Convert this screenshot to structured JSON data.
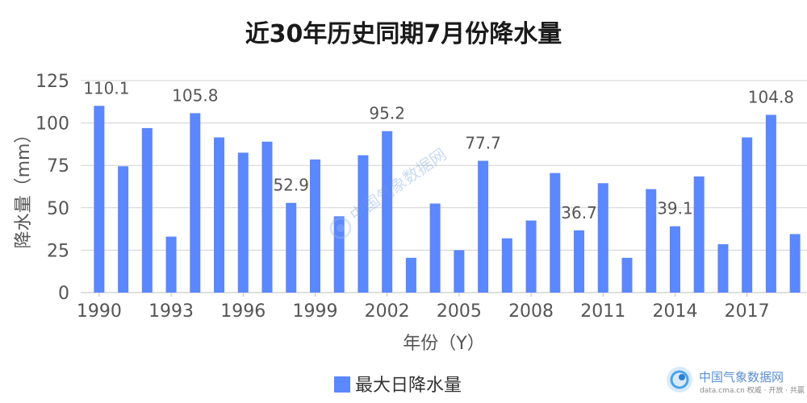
{
  "chart_data": {
    "type": "bar",
    "title": "近30年历史同期7月份降水量",
    "xlabel": "年份（Y）",
    "ylabel": "降水量（mm）",
    "ylim": [
      0,
      125
    ],
    "yticks": [
      "0",
      "25",
      "50",
      "75",
      "100",
      "125"
    ],
    "grid": true,
    "legend_position": "bottom",
    "bar_color": "#5b87ff",
    "categories": [
      1990,
      1991,
      1992,
      1993,
      1994,
      1995,
      1996,
      1997,
      1998,
      1999,
      2000,
      2001,
      2002,
      2003,
      2004,
      2005,
      2006,
      2007,
      2008,
      2009,
      2010,
      2011,
      2012,
      2013,
      2014,
      2015,
      2016,
      2017,
      2018,
      2019
    ],
    "xtick_labels": [
      "1990",
      "1993",
      "1996",
      "1999",
      "2002",
      "2005",
      "2008",
      "2011",
      "2014",
      "2017"
    ],
    "series": [
      {
        "name": "最大日降水量",
        "values": [
          110.1,
          74.5,
          97,
          33,
          105.8,
          91.5,
          82.5,
          89,
          52.9,
          78.5,
          45,
          81,
          95.2,
          20.5,
          52.5,
          25,
          77.7,
          32,
          42.5,
          70.5,
          36.7,
          64.5,
          20.5,
          61,
          39.1,
          68.5,
          28.5,
          91.5,
          104.8,
          34.5
        ]
      }
    ],
    "data_labels": [
      {
        "year": 1990,
        "text": "110.1"
      },
      {
        "year": 1994,
        "text": "105.8"
      },
      {
        "year": 1998,
        "text": "52.9"
      },
      {
        "year": 2002,
        "text": "95.2"
      },
      {
        "year": 2006,
        "text": "77.7"
      },
      {
        "year": 2010,
        "text": "36.7"
      },
      {
        "year": 2014,
        "text": "39.1"
      },
      {
        "year": 2018,
        "text": "104.8"
      }
    ]
  },
  "watermark": {
    "center_text": "中国气象数据网",
    "corner_title": "中国气象数据网",
    "corner_sub": "data.cma.cn 权威 · 开放 · 共赢"
  }
}
